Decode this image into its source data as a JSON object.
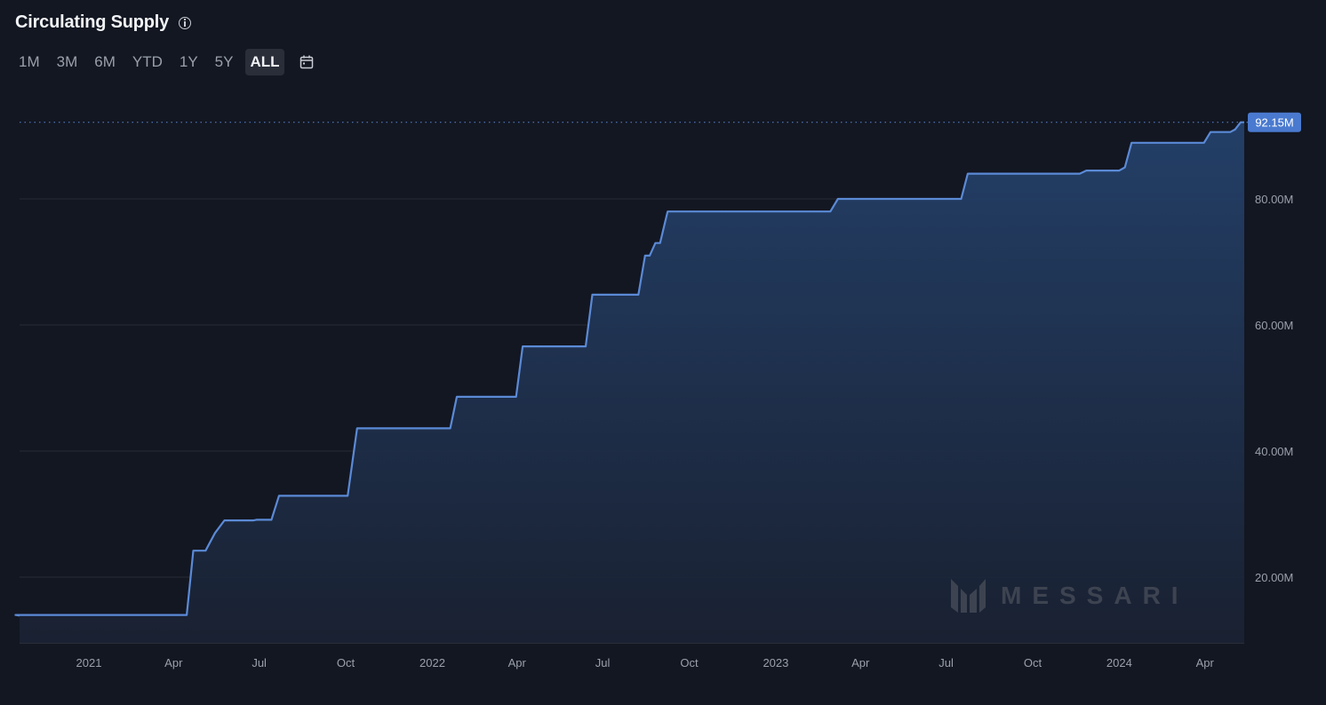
{
  "header": {
    "title": "Circulating Supply",
    "info_icon": "info-icon"
  },
  "ranges": {
    "items": [
      "1M",
      "3M",
      "6M",
      "YTD",
      "1Y",
      "5Y",
      "ALL"
    ],
    "active": "ALL",
    "calendar_icon": "calendar-icon"
  },
  "watermark": {
    "text": "MESSARI"
  },
  "colors": {
    "background": "#131722",
    "line": "#5b8ad6",
    "fill_top": "#24416b",
    "label_bg": "#4a7ad0",
    "grid": "#262b36"
  },
  "chart_data": {
    "type": "area",
    "title": "Circulating Supply",
    "xlabel": "",
    "ylabel": "",
    "x_tick_labels": [
      "2021",
      "Apr",
      "Jul",
      "Oct",
      "2022",
      "Apr",
      "Jul",
      "Oct",
      "2023",
      "Apr",
      "Jul",
      "Oct",
      "2024",
      "Apr"
    ],
    "y_tick_labels": [
      "20.00M",
      "40.00M",
      "60.00M",
      "80.00M"
    ],
    "ylim_millions": [
      10,
      94
    ],
    "last_value_label": "92.15M",
    "grid": "horizontal",
    "series": [
      {
        "points": [
          [
            "2020-10-01",
            13.9
          ],
          [
            "2020-10-15",
            14.0
          ],
          [
            "2021-04-15",
            14.0
          ],
          [
            "2021-04-22",
            24.2
          ],
          [
            "2021-05-05",
            24.2
          ],
          [
            "2021-05-15",
            27.0
          ],
          [
            "2021-05-25",
            29.0
          ],
          [
            "2021-06-25",
            29.0
          ],
          [
            "2021-06-28",
            29.1
          ],
          [
            "2021-07-14",
            29.1
          ],
          [
            "2021-07-22",
            32.9
          ],
          [
            "2021-10-03",
            32.9
          ],
          [
            "2021-10-13",
            43.6
          ],
          [
            "2022-01-20",
            43.6
          ],
          [
            "2022-01-27",
            48.6
          ],
          [
            "2022-03-31",
            48.6
          ],
          [
            "2022-04-07",
            56.6
          ],
          [
            "2022-06-13",
            56.6
          ],
          [
            "2022-06-20",
            64.8
          ],
          [
            "2022-08-08",
            64.8
          ],
          [
            "2022-08-15",
            71.0
          ],
          [
            "2022-08-20",
            71.0
          ],
          [
            "2022-08-26",
            73.0
          ],
          [
            "2022-08-31",
            73.0
          ],
          [
            "2022-09-08",
            78.0
          ],
          [
            "2023-02-28",
            78.0
          ],
          [
            "2023-03-08",
            80.0
          ],
          [
            "2023-07-17",
            80.0
          ],
          [
            "2023-07-24",
            84.0
          ],
          [
            "2023-11-20",
            84.0
          ],
          [
            "2023-11-27",
            84.5
          ],
          [
            "2024-01-01",
            84.5
          ],
          [
            "2024-01-07",
            85.0
          ],
          [
            "2024-01-14",
            88.9
          ],
          [
            "2024-03-31",
            88.9
          ],
          [
            "2024-04-07",
            90.6
          ],
          [
            "2024-04-28",
            90.6
          ],
          [
            "2024-05-03",
            91.0
          ],
          [
            "2024-05-09",
            92.15
          ],
          [
            "2024-05-21",
            92.15
          ]
        ]
      }
    ]
  }
}
